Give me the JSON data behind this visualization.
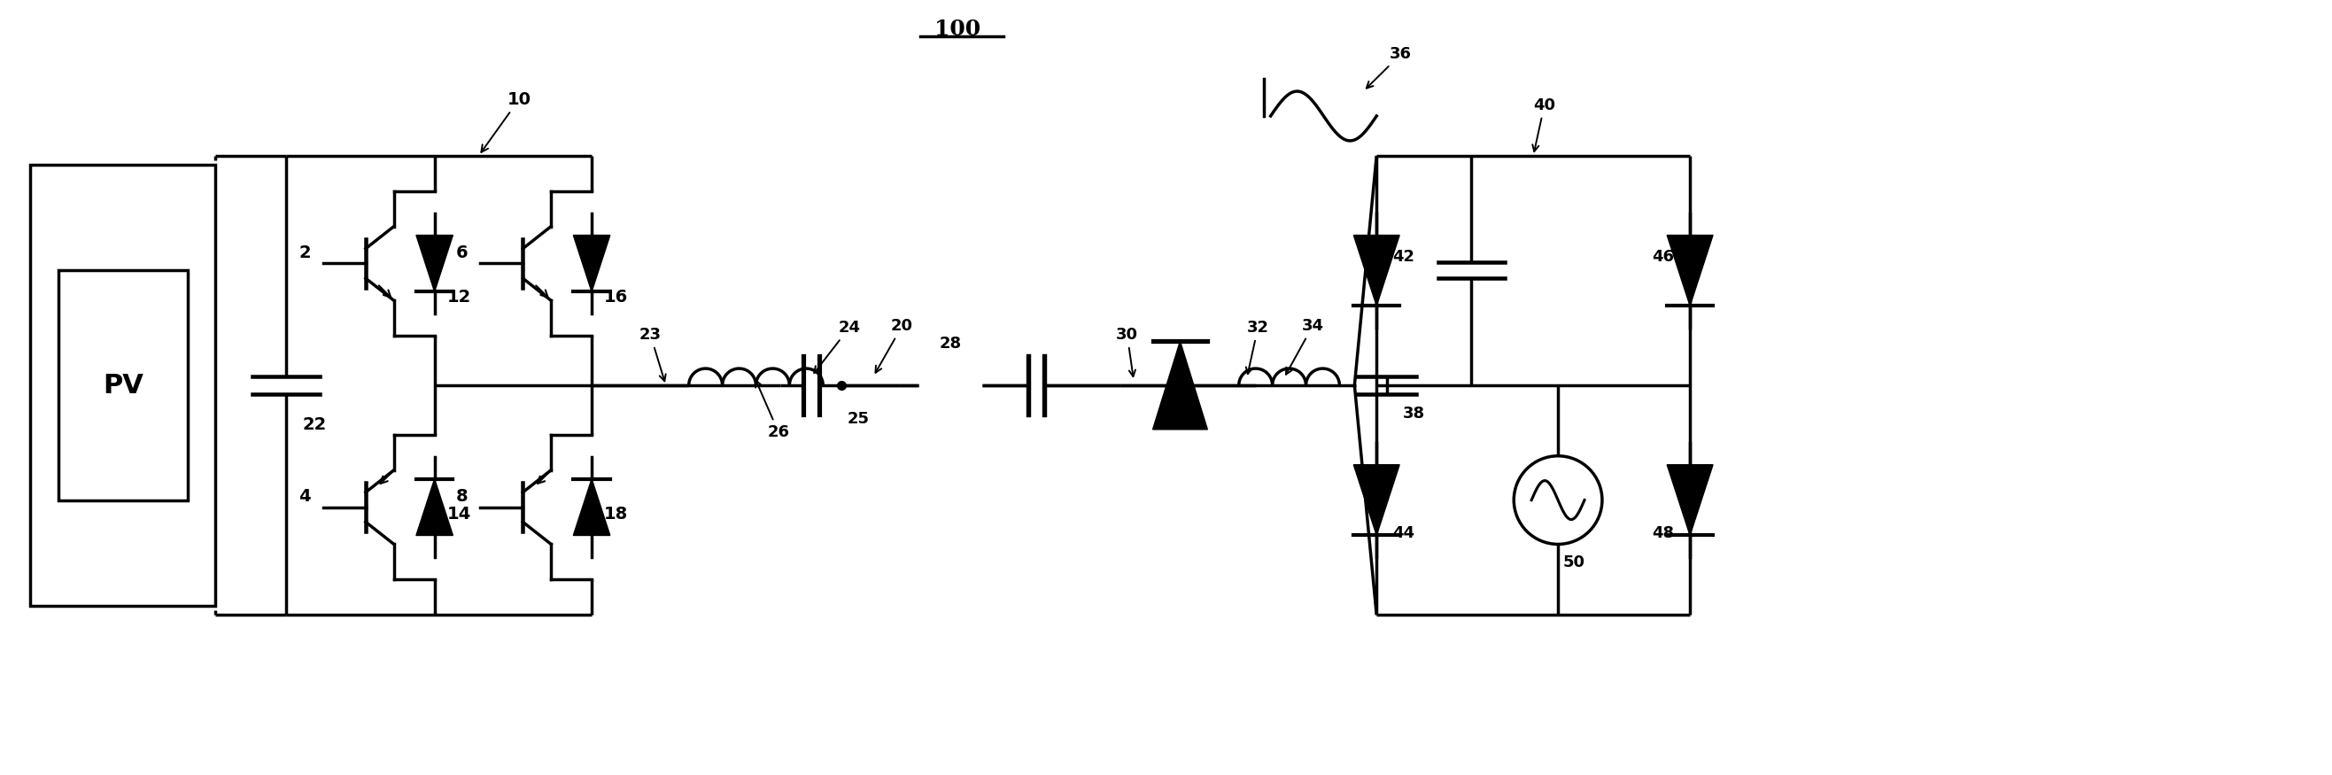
{
  "title": "100",
  "bg_color": "#ffffff",
  "line_color": "#000000",
  "line_width": 2.5,
  "fig_width": 26.33,
  "fig_height": 8.75
}
